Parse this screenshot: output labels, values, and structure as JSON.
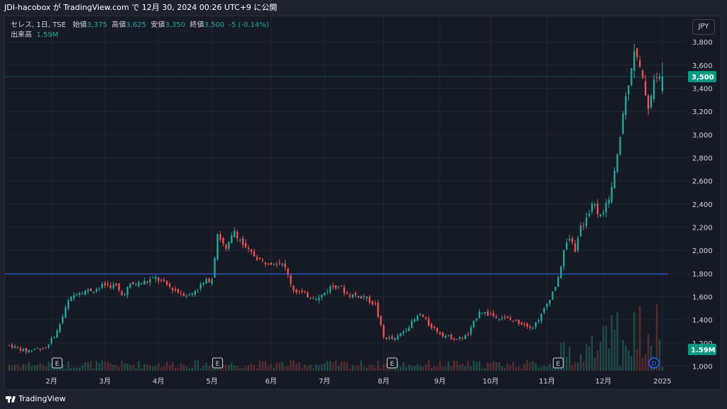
{
  "header": {
    "text": "JDI-hacobox が TradingView.com で 12月 30, 2024 00:26 UTC+9 に公開"
  },
  "legend": {
    "symbol": "セレス, 1日, TSE",
    "open_label": "始値",
    "open": "3,375",
    "high_label": "高値",
    "high": "3,625",
    "low_label": "安値",
    "low": "3,350",
    "close_label": "終値",
    "close": "3,500",
    "change": "-5 (-0.14%)",
    "volume_label": "出来高",
    "volume": "1.59M"
  },
  "currency": "JPY",
  "footer": {
    "brand": "TradingView"
  },
  "colors": {
    "up": "#26a69a",
    "down": "#ef5350",
    "hline": "#2962ff",
    "grid": "#232734",
    "volume_up": "#1f4d47",
    "volume_down": "#5a2a2e",
    "last_price_tag": "#089981",
    "volume_tag": "#089981",
    "dividend": "#2962ff"
  },
  "chart_data": {
    "type": "candlestick",
    "y_axis": {
      "min": 960,
      "max": 3960,
      "ticks": [
        1000,
        1200,
        1400,
        1600,
        1800,
        2000,
        2200,
        2400,
        2600,
        2800,
        3000,
        3200,
        3400,
        3600,
        3800
      ],
      "tick_labels": [
        "1,000",
        "1,200",
        "1,400",
        "1,600",
        "1,800",
        "2,000",
        "2,200",
        "2,400",
        "2,600",
        "2,800",
        "3,000",
        "3,200",
        "3,400",
        "3,600",
        "3,800"
      ],
      "last_price": 3500,
      "last_price_label": "3,500",
      "volume_label": "1.59M"
    },
    "x_axis": {
      "labels": [
        "2月",
        "3月",
        "4月",
        "5月",
        "6月",
        "7月",
        "8月",
        "9月",
        "10月",
        "11月",
        "12月",
        "2025"
      ],
      "label_sessions": [
        15,
        34,
        53,
        72,
        93,
        112,
        133,
        153,
        171,
        191,
        211,
        232
      ]
    },
    "sessions_total": 233,
    "horizontal_line": 1795,
    "earnings_markers": [
      {
        "label": "E",
        "session": 17
      },
      {
        "label": "E",
        "session": 74
      },
      {
        "label": "E",
        "session": 136
      },
      {
        "label": "E",
        "session": 195
      }
    ],
    "dividend_marker": {
      "label": "D",
      "session": 229
    },
    "price_path": [
      [
        0,
        1180
      ],
      [
        6,
        1130
      ],
      [
        9,
        1150
      ],
      [
        13,
        1160
      ],
      [
        17,
        1300
      ],
      [
        21,
        1560
      ],
      [
        24,
        1640
      ],
      [
        30,
        1660
      ],
      [
        34,
        1700
      ],
      [
        38,
        1690
      ],
      [
        40,
        1610
      ],
      [
        43,
        1700
      ],
      [
        47,
        1720
      ],
      [
        52,
        1760
      ],
      [
        56,
        1700
      ],
      [
        60,
        1640
      ],
      [
        64,
        1610
      ],
      [
        68,
        1700
      ],
      [
        72,
        1760
      ],
      [
        74,
        2150
      ],
      [
        77,
        2000
      ],
      [
        80,
        2170
      ],
      [
        84,
        2010
      ],
      [
        90,
        1900
      ],
      [
        97,
        1900
      ],
      [
        101,
        1660
      ],
      [
        106,
        1610
      ],
      [
        110,
        1590
      ],
      [
        114,
        1680
      ],
      [
        117,
        1700
      ],
      [
        120,
        1620
      ],
      [
        126,
        1600
      ],
      [
        130,
        1530
      ],
      [
        133,
        1250
      ],
      [
        137,
        1230
      ],
      [
        142,
        1350
      ],
      [
        146,
        1450
      ],
      [
        149,
        1360
      ],
      [
        154,
        1270
      ],
      [
        159,
        1230
      ],
      [
        163,
        1270
      ],
      [
        167,
        1480
      ],
      [
        170,
        1450
      ],
      [
        175,
        1420
      ],
      [
        181,
        1380
      ],
      [
        186,
        1340
      ],
      [
        189,
        1440
      ],
      [
        193,
        1640
      ],
      [
        195,
        1750
      ],
      [
        197,
        2000
      ],
      [
        199,
        2100
      ],
      [
        201,
        2010
      ],
      [
        203,
        2190
      ],
      [
        205,
        2270
      ],
      [
        207,
        2420
      ],
      [
        209,
        2340
      ],
      [
        211,
        2310
      ],
      [
        214,
        2540
      ],
      [
        216,
        2800
      ],
      [
        218,
        3180
      ],
      [
        220,
        3460
      ],
      [
        222,
        3740
      ],
      [
        224,
        3560
      ],
      [
        226,
        3360
      ],
      [
        227,
        3240
      ],
      [
        229,
        3460
      ],
      [
        232,
        3500
      ]
    ],
    "last_candle": {
      "open": 3375,
      "high": 3625,
      "low": 3350,
      "close": 3500
    }
  }
}
